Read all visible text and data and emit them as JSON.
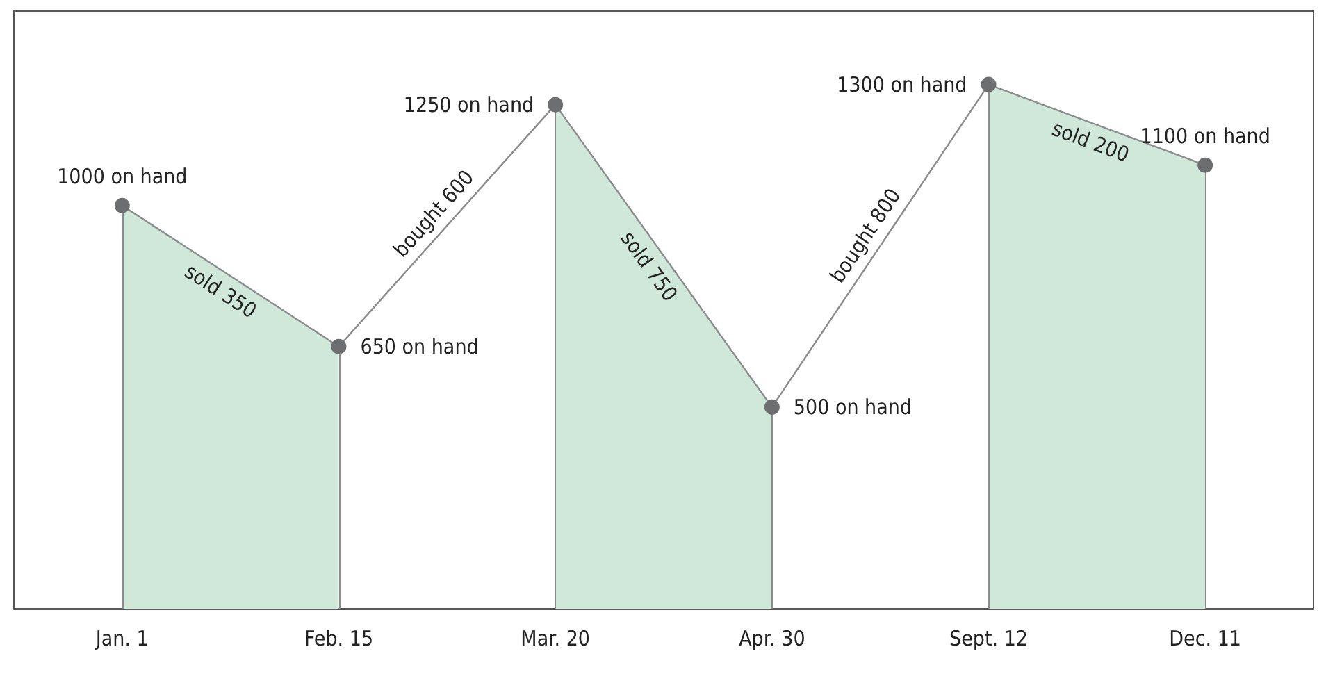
{
  "chart_data": {
    "type": "line",
    "categories": [
      "Jan. 1",
      "Feb. 15",
      "Mar. 20",
      "Apr. 30",
      "Sept. 12",
      "Dec. 11"
    ],
    "series": [
      {
        "color": "#6d6e70",
        "values": [
          1000,
          650,
          1250,
          500,
          1300,
          1100
        ],
        "value_labels": [
          "1000 on hand",
          "650 on hand",
          "1250 on hand",
          "500 on hand",
          "1300 on hand",
          "1100 on hand"
        ]
      },
      {
        "type": "area",
        "color": "#cfe8d9",
        "marker": "none",
        "values": [
          1000,
          650,
          null,
          null,
          null,
          null
        ]
      },
      {
        "type": "area",
        "color": "#cfe8d9",
        "marker": "none",
        "values": [
          null,
          null,
          1250,
          500,
          null,
          null
        ]
      },
      {
        "type": "area",
        "color": "#cfe8d9",
        "marker": "none",
        "values": [
          null,
          null,
          null,
          null,
          1300,
          1100
        ]
      }
    ],
    "annotations": [
      "sold 350",
      "bought 600",
      "sold 750",
      "bought 800",
      "sold 200"
    ],
    "marker": "circle",
    "grid": "x",
    "tick_labels": "x"
  }
}
